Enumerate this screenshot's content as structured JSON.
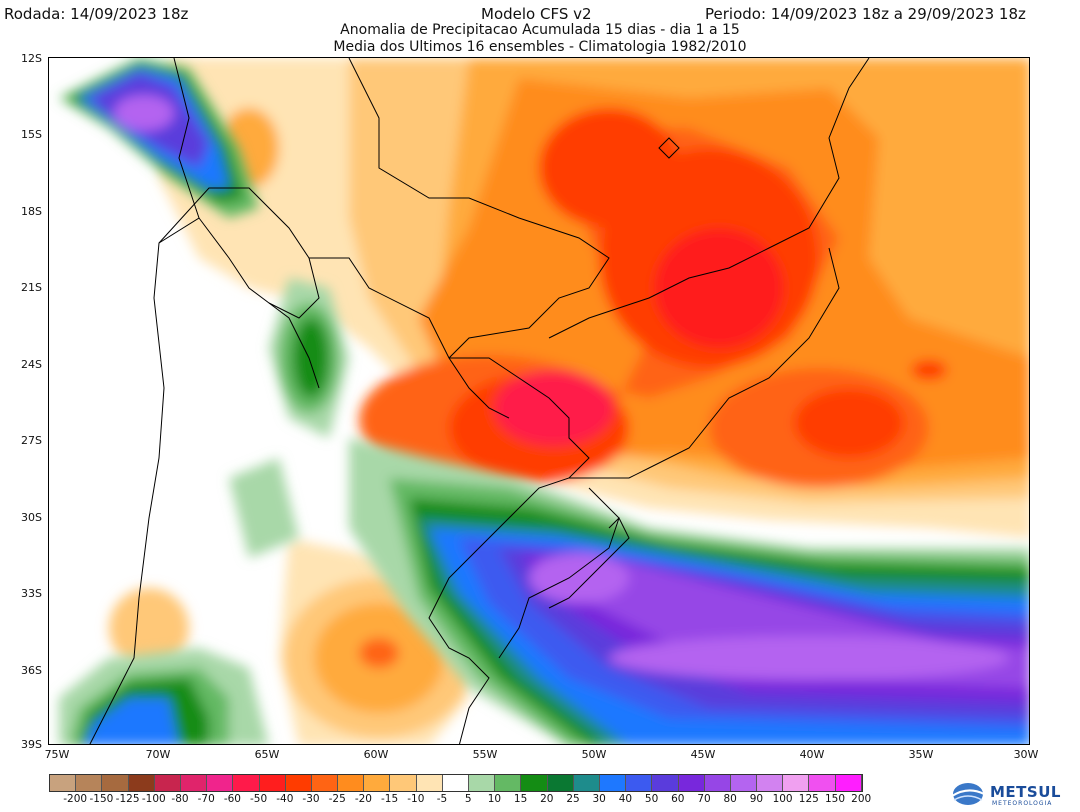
{
  "header": {
    "run": "Rodada: 14/09/2023 18z",
    "model": "Modelo CFS v2",
    "period": "Periodo: 14/09/2023 18z a 29/09/2023 18z",
    "line2": "Anomalia de Precipitacao Acumulada 15 dias - dia 1 a 15",
    "line3": "Media dos Ultimos 16 ensembles - Climatologia 1982/2010"
  },
  "map": {
    "lat_labels": [
      "12S",
      "15S",
      "18S",
      "21S",
      "24S",
      "27S",
      "30S",
      "33S",
      "36S",
      "39S"
    ],
    "lon_labels": [
      "75W",
      "70W",
      "65W",
      "60W",
      "55W",
      "50W",
      "45W",
      "40W",
      "35W",
      "30W"
    ]
  },
  "legend": {
    "labels": [
      "-200",
      "-150",
      "-125",
      "-100",
      "-80",
      "-70",
      "-60",
      "-50",
      "-40",
      "-30",
      "-25",
      "-20",
      "-15",
      "-10",
      "-5",
      "5",
      "10",
      "15",
      "20",
      "25",
      "30",
      "40",
      "50",
      "60",
      "70",
      "80",
      "90",
      "100",
      "125",
      "150",
      "200"
    ],
    "colors": [
      "#c8a27e",
      "#b6845a",
      "#a66a3f",
      "#8c3b1c",
      "#c8254e",
      "#e0246b",
      "#f0248c",
      "#ff1a4a",
      "#ff1e1e",
      "#ff3c00",
      "#ff6414",
      "#ff8c1e",
      "#ffaa3c",
      "#ffc878",
      "#ffe4b4",
      "#ffffff",
      "#a8d8a8",
      "#64b964",
      "#148c14",
      "#0a7832",
      "#1e8c8c",
      "#1e78ff",
      "#3c5af0",
      "#5a3cdc",
      "#7828dc",
      "#9646e6",
      "#b464f0",
      "#d282f0",
      "#f0a0f0",
      "#f050f0",
      "#ff1eff"
    ]
  },
  "logo": {
    "name": "METSUL",
    "sub": "METEOROLOGIA"
  }
}
